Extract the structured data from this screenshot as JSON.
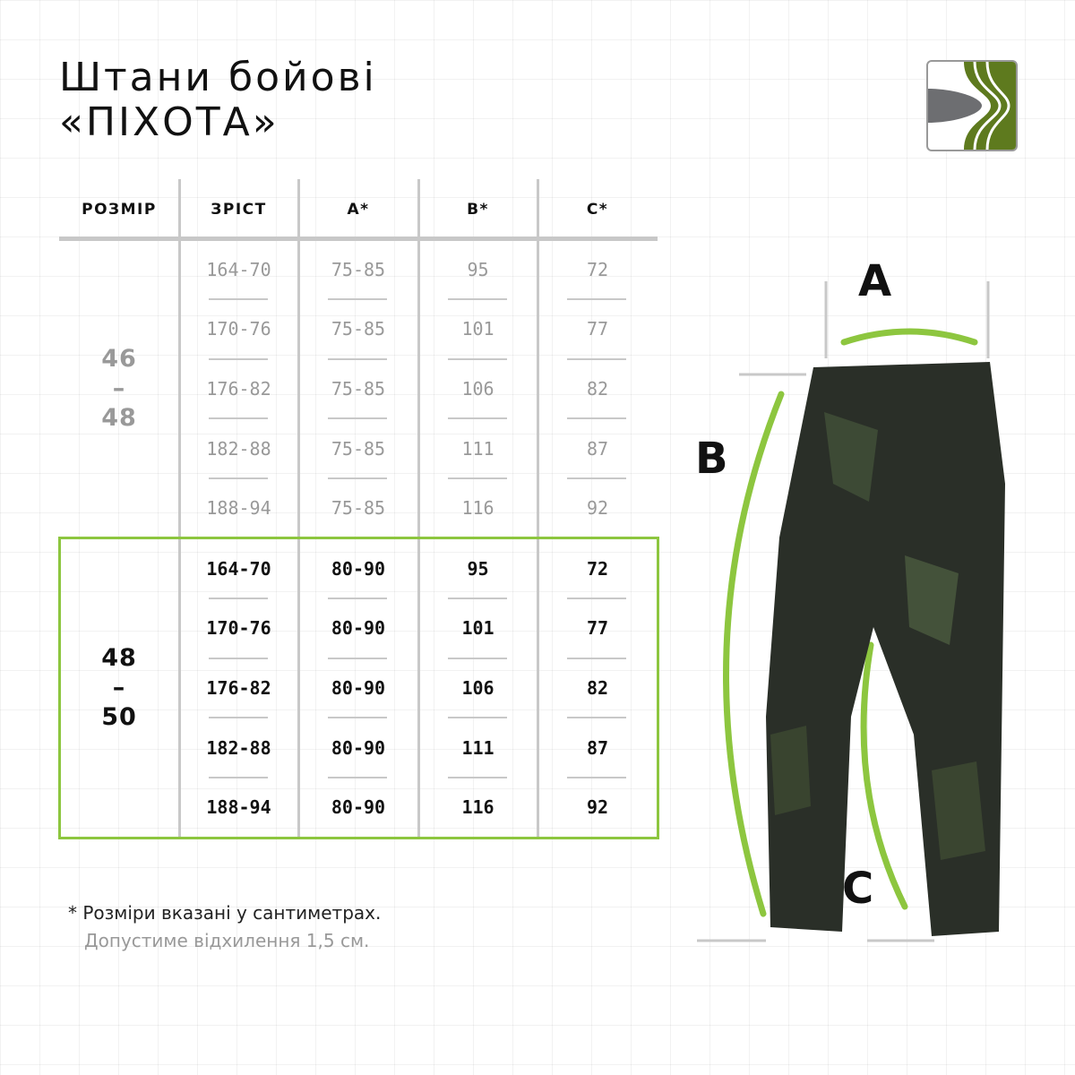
{
  "title": {
    "line1": "Штани бойові",
    "line2": "«ПІХОТА»"
  },
  "table": {
    "headers": [
      "РОЗМІР",
      "ЗРІСТ",
      "A*",
      "B*",
      "C*"
    ],
    "groups": [
      {
        "size": [
          "46",
          "–",
          "48"
        ],
        "highlighted": false,
        "rows": [
          [
            "164-70",
            "75-85",
            "95",
            "72"
          ],
          [
            "170-76",
            "75-85",
            "101",
            "77"
          ],
          [
            "176-82",
            "75-85",
            "106",
            "82"
          ],
          [
            "182-88",
            "75-85",
            "111",
            "87"
          ],
          [
            "188-94",
            "75-85",
            "116",
            "92"
          ]
        ]
      },
      {
        "size": [
          "48",
          "–",
          "50"
        ],
        "highlighted": true,
        "rows": [
          [
            "164-70",
            "80-90",
            "95",
            "72"
          ],
          [
            "170-76",
            "80-90",
            "101",
            "77"
          ],
          [
            "176-82",
            "80-90",
            "106",
            "82"
          ],
          [
            "182-88",
            "80-90",
            "111",
            "87"
          ],
          [
            "188-94",
            "80-90",
            "116",
            "92"
          ]
        ]
      }
    ]
  },
  "notes": {
    "line1": "* Розміри вказані у сантиметрах.",
    "line2": "Допустиме відхилення 1,5 см."
  },
  "diagram": {
    "labels": {
      "a": "A",
      "b": "B",
      "c": "C"
    }
  },
  "colors": {
    "accent": "#8dc63f",
    "logo_green": "#5e7a1e",
    "logo_gray": "#6d6e71"
  },
  "icons": [
    "brand-logo",
    "pants-image"
  ]
}
